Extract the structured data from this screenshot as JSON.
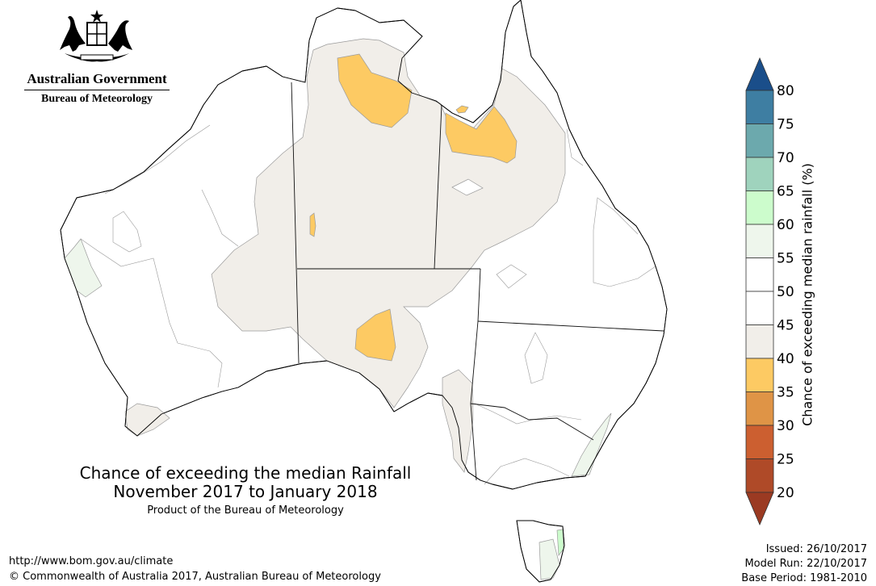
{
  "logo": {
    "government": "Australian Government",
    "bureau": "Bureau of Meteorology",
    "icon": "australian-coat-of-arms-icon"
  },
  "title": {
    "line1": "Chance of exceeding the median Rainfall",
    "line2": "November 2017 to January 2018",
    "subtitle": "Product of the Bureau of Meteorology"
  },
  "footer": {
    "url": "http://www.bom.gov.au/climate",
    "copyright": "© Commonwealth of Australia 2017, Australian Bureau of Meteorology"
  },
  "meta": {
    "issued": "Issued: 26/10/2017",
    "model_run": "Model Run: 22/10/2017",
    "base_period": "Base Period: 1981-2010"
  },
  "colorbar": {
    "title": "Chance of exceeding median rainfall (%)",
    "ticks": [
      "20",
      "25",
      "30",
      "35",
      "40",
      "45",
      "50",
      "55",
      "60",
      "65",
      "70",
      "75",
      "80"
    ],
    "band_colors": [
      "#af4a28",
      "#cc5f30",
      "#df9446",
      "#fdca63",
      "#f1eee9",
      "#ffffff",
      "#ffffff",
      "#eef6ec",
      "#ccfccc",
      "#9fd3bd",
      "#6ca9ad",
      "#3e7ea2"
    ],
    "under_color": "#9b3a22",
    "over_color": "#1a4e8a"
  },
  "map": {
    "colors": {
      "land": "#ffffff",
      "band_40_45": "#f1eee9",
      "band_35_40": "#fdca63",
      "band_55_60": "#eef6ec",
      "coast": "#000000",
      "border": "#111111",
      "contour": "#9a9a9a"
    }
  }
}
